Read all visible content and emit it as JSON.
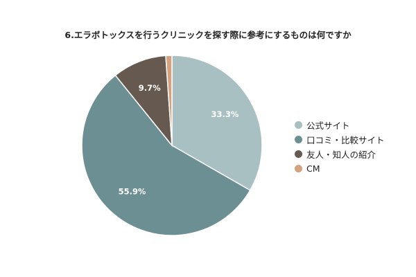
{
  "chart_data": {
    "type": "pie",
    "title": "6.エラボトックスを行うクリニックを探す際に参考にするものは何ですか",
    "categories": [
      "公式サイト",
      "口コミ・比較サイト",
      "友人・知人の紹介",
      "CM"
    ],
    "values": [
      33.3,
      55.9,
      9.7,
      1.1
    ],
    "labels": [
      "33.3%",
      "55.9%",
      "9.7%",
      ""
    ],
    "colors": [
      "#a8c0c1",
      "#6b8f93",
      "#665a50",
      "#d4a27e"
    ],
    "legend": "right",
    "start_angle": "top",
    "direction": "clockwise"
  }
}
